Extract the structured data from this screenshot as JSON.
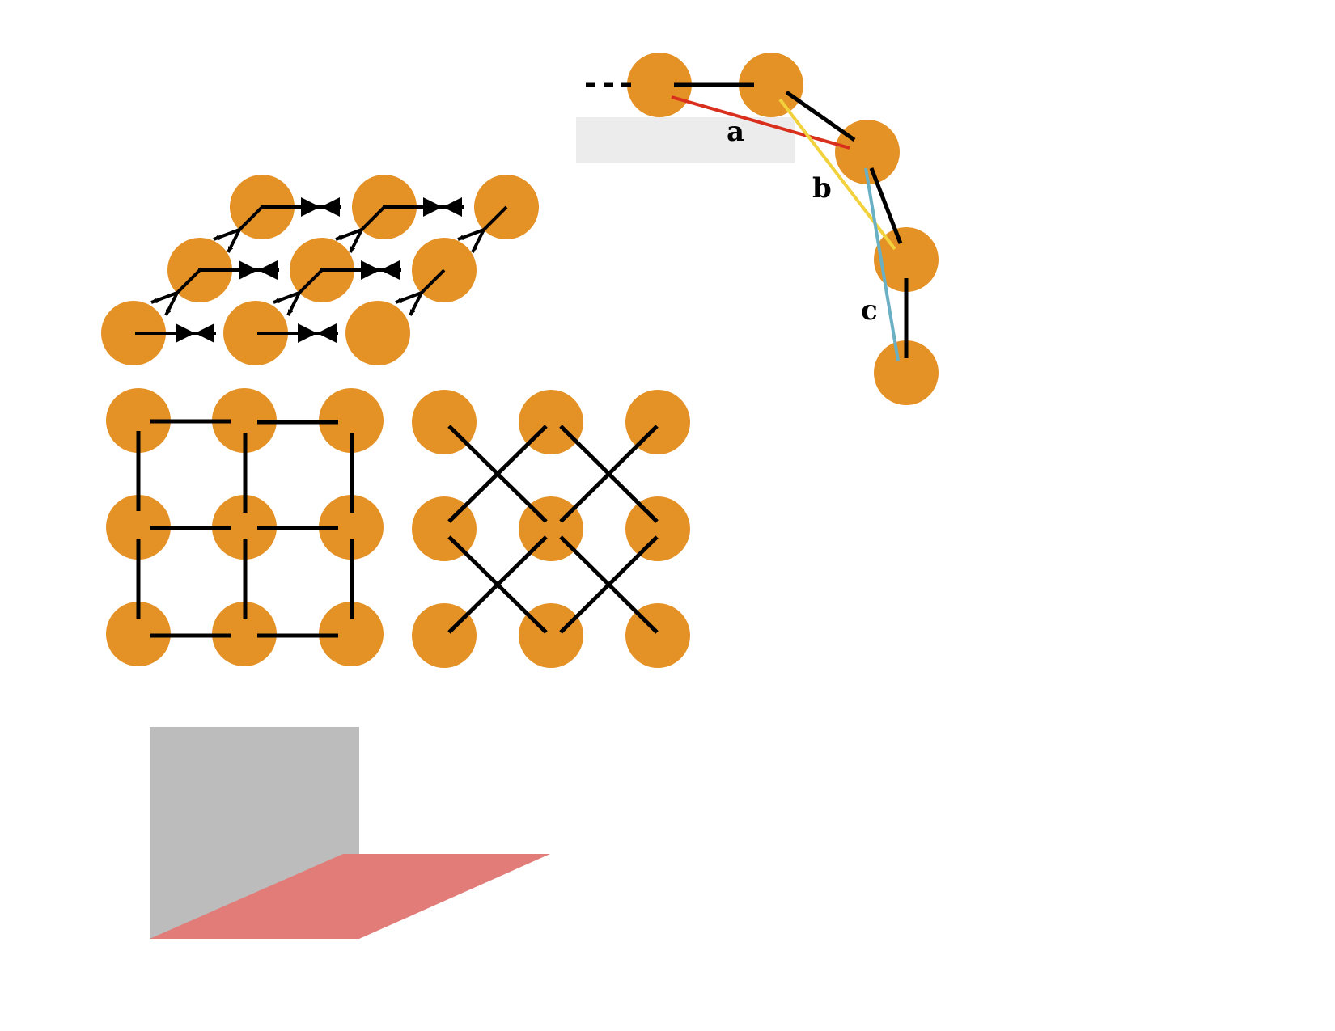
{
  "labels": {
    "a": "a",
    "b": "b",
    "c": "c"
  },
  "colors": {
    "atom": "#e49125",
    "bond": "#000000",
    "line_a": "#d9301e",
    "line_b": "#f1d23c",
    "line_c": "#6ab0c4",
    "gray_box": "#bcbcbc",
    "light_gray_box": "#ececec",
    "pink_plane": "#e27c78"
  }
}
